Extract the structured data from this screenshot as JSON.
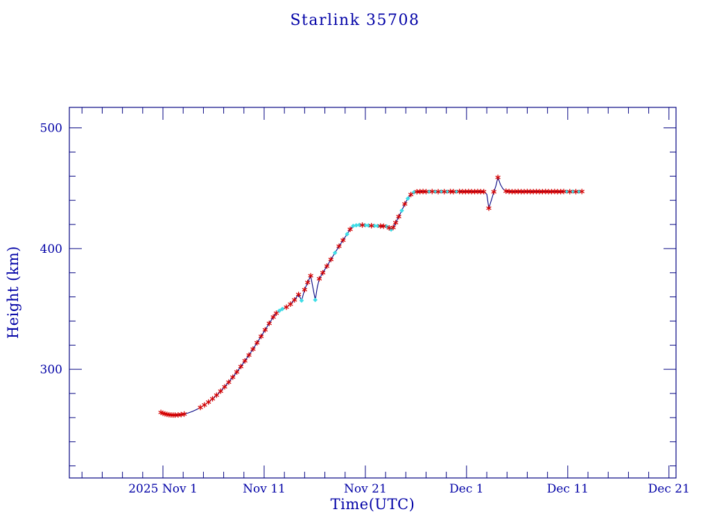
{
  "title": "Starlink 35708",
  "chart_data": {
    "type": "line",
    "title": "Starlink 35708",
    "xlabel": "Time(UTC)",
    "ylabel": "Height (km)",
    "x_unit": "days since 2025 Nov 1 00:00 UTC",
    "xlim": [
      -9.25,
      50.7
    ],
    "ylim": [
      210,
      517
    ],
    "grid": false,
    "legend": "none",
    "x_major_ticks": [
      {
        "day": 0,
        "label": "2025 Nov 1"
      },
      {
        "day": 10,
        "label": "Nov 11"
      },
      {
        "day": 20,
        "label": "Nov 21"
      },
      {
        "day": 30,
        "label": "Dec 1"
      },
      {
        "day": 40,
        "label": "Dec 11"
      },
      {
        "day": 50,
        "label": "Dec 21"
      }
    ],
    "x_minor_step": 2,
    "y_major_ticks": [
      {
        "km": 300,
        "label": "300"
      },
      {
        "km": 400,
        "label": "400"
      },
      {
        "km": 500,
        "label": "500"
      }
    ],
    "y_minor_step": 20,
    "colors": {
      "line": "#000080",
      "red_marker": "#d40000",
      "cyan_marker": "#3fdde6",
      "text": "#0000a6",
      "frame": "#000080"
    },
    "marker_legend": {
      "r": "red asterisk data point",
      "c": "cyan diamond data point",
      "n": "line only"
    },
    "points": [
      [
        -0.2,
        264.3,
        "r"
      ],
      [
        0,
        263.6,
        "r"
      ],
      [
        0.2,
        263.1,
        "r"
      ],
      [
        0.4,
        262.7,
        "r"
      ],
      [
        0.6,
        262.4,
        "r"
      ],
      [
        0.8,
        262.2,
        "r"
      ],
      [
        1,
        262.1,
        "r"
      ],
      [
        1.2,
        262.1,
        "r"
      ],
      [
        1.5,
        262.2,
        "r"
      ],
      [
        1.8,
        262.5,
        "r"
      ],
      [
        2.1,
        263,
        "r"
      ],
      [
        2.5,
        263.9,
        "n"
      ],
      [
        2.9,
        265.1,
        "n"
      ],
      [
        3.3,
        266.6,
        "n"
      ],
      [
        3.7,
        268.4,
        "r"
      ],
      [
        4.1,
        270.5,
        "r"
      ],
      [
        4.5,
        272.9,
        "r"
      ],
      [
        4.9,
        275.6,
        "r"
      ],
      [
        5.3,
        278.6,
        "r"
      ],
      [
        5.7,
        281.9,
        "r"
      ],
      [
        6.1,
        285.5,
        "r"
      ],
      [
        6.5,
        289.4,
        "r"
      ],
      [
        6.9,
        293.5,
        "r"
      ],
      [
        7.3,
        297.8,
        "r"
      ],
      [
        7.7,
        302.3,
        "r"
      ],
      [
        8.1,
        307,
        "r"
      ],
      [
        8.5,
        311.8,
        "r"
      ],
      [
        8.9,
        316.8,
        "r"
      ],
      [
        9.3,
        322,
        "r"
      ],
      [
        9.7,
        327.3,
        "r"
      ],
      [
        10.1,
        332.7,
        "r"
      ],
      [
        10.5,
        338.1,
        "r"
      ],
      [
        10.9,
        343.3,
        "r"
      ],
      [
        11.2,
        346.5,
        "r"
      ],
      [
        11.5,
        348.5,
        "c"
      ],
      [
        11.8,
        350,
        "c"
      ],
      [
        12.2,
        351.5,
        "r"
      ],
      [
        12.6,
        354,
        "r"
      ],
      [
        13,
        357.5,
        "r"
      ],
      [
        13.4,
        362,
        "r"
      ],
      [
        13.7,
        357,
        "c"
      ],
      [
        14,
        366,
        "r"
      ],
      [
        14.3,
        372,
        "r"
      ],
      [
        14.6,
        377.5,
        "r"
      ],
      [
        14.9,
        364,
        "n"
      ],
      [
        15.05,
        357.5,
        "c"
      ],
      [
        15.25,
        368,
        "n"
      ],
      [
        15.45,
        375,
        "r"
      ],
      [
        15.8,
        380,
        "r"
      ],
      [
        16.2,
        385.5,
        "r"
      ],
      [
        16.6,
        391,
        "r"
      ],
      [
        17,
        396.5,
        "c"
      ],
      [
        17.4,
        402,
        "r"
      ],
      [
        17.8,
        407,
        "r"
      ],
      [
        18.2,
        412,
        "c"
      ],
      [
        18.5,
        416,
        "r"
      ],
      [
        18.8,
        418.8,
        "c"
      ],
      [
        19.1,
        419.3,
        "c"
      ],
      [
        19.4,
        419.6,
        "c"
      ],
      [
        19.7,
        419.5,
        "r"
      ],
      [
        20,
        419.3,
        "c"
      ],
      [
        20.3,
        419.2,
        "c"
      ],
      [
        20.6,
        419,
        "r"
      ],
      [
        20.9,
        418.9,
        "c"
      ],
      [
        21.2,
        418.8,
        "c"
      ],
      [
        21.5,
        418.7,
        "r"
      ],
      [
        21.8,
        418.6,
        "r"
      ],
      [
        22.1,
        418.4,
        "c"
      ],
      [
        22.35,
        417.2,
        "r"
      ],
      [
        22.55,
        415.8,
        "c"
      ],
      [
        22.75,
        417.5,
        "r"
      ],
      [
        23,
        421.5,
        "r"
      ],
      [
        23.3,
        426.5,
        "r"
      ],
      [
        23.6,
        431.5,
        "c"
      ],
      [
        23.9,
        437,
        "r"
      ],
      [
        24.2,
        441.5,
        "c"
      ],
      [
        24.5,
        444.8,
        "r"
      ],
      [
        24.8,
        446.6,
        "c"
      ],
      [
        25.1,
        447.1,
        "r"
      ],
      [
        25.4,
        447.2,
        "r"
      ],
      [
        25.7,
        447.3,
        "r"
      ],
      [
        26,
        447.2,
        "r"
      ],
      [
        26.3,
        447.2,
        "c"
      ],
      [
        26.6,
        447.3,
        "r"
      ],
      [
        26.9,
        447.2,
        "c"
      ],
      [
        27.2,
        447.2,
        "r"
      ],
      [
        27.5,
        447.3,
        "c"
      ],
      [
        27.8,
        447.2,
        "r"
      ],
      [
        28.1,
        447.2,
        "c"
      ],
      [
        28.4,
        447.3,
        "r"
      ],
      [
        28.7,
        447.2,
        "r"
      ],
      [
        29,
        447.2,
        "c"
      ],
      [
        29.3,
        447.3,
        "r"
      ],
      [
        29.6,
        447.2,
        "r"
      ],
      [
        29.9,
        447.2,
        "r"
      ],
      [
        30.2,
        447.3,
        "r"
      ],
      [
        30.5,
        447.2,
        "r"
      ],
      [
        30.8,
        447.2,
        "r"
      ],
      [
        31.1,
        447.3,
        "r"
      ],
      [
        31.4,
        447.2,
        "r"
      ],
      [
        31.7,
        447.2,
        "r"
      ],
      [
        32,
        445,
        "n"
      ],
      [
        32.2,
        433.5,
        "r"
      ],
      [
        32.45,
        440,
        "n"
      ],
      [
        32.7,
        447,
        "r"
      ],
      [
        32.9,
        452,
        "n"
      ],
      [
        33.1,
        459,
        "r"
      ],
      [
        33.35,
        453,
        "n"
      ],
      [
        33.6,
        449.5,
        "n"
      ],
      [
        33.9,
        447.6,
        "r"
      ],
      [
        34.2,
        447.3,
        "r"
      ],
      [
        34.5,
        447.2,
        "r"
      ],
      [
        34.8,
        447.2,
        "r"
      ],
      [
        35.1,
        447.3,
        "r"
      ],
      [
        35.4,
        447.2,
        "r"
      ],
      [
        35.7,
        447.2,
        "r"
      ],
      [
        36,
        447.3,
        "r"
      ],
      [
        36.3,
        447.2,
        "r"
      ],
      [
        36.6,
        447.2,
        "r"
      ],
      [
        36.9,
        447.3,
        "r"
      ],
      [
        37.2,
        447.2,
        "r"
      ],
      [
        37.5,
        447.2,
        "r"
      ],
      [
        37.8,
        447.3,
        "r"
      ],
      [
        38.1,
        447.2,
        "r"
      ],
      [
        38.4,
        447.2,
        "r"
      ],
      [
        38.7,
        447.3,
        "r"
      ],
      [
        39,
        447.2,
        "r"
      ],
      [
        39.3,
        447.2,
        "r"
      ],
      [
        39.6,
        447.3,
        "r"
      ],
      [
        39.9,
        447.2,
        "c"
      ],
      [
        40.2,
        447.2,
        "r"
      ],
      [
        40.5,
        447.3,
        "c"
      ],
      [
        40.8,
        447.2,
        "r"
      ],
      [
        41.1,
        447.2,
        "c"
      ],
      [
        41.4,
        447.3,
        "r"
      ]
    ]
  }
}
